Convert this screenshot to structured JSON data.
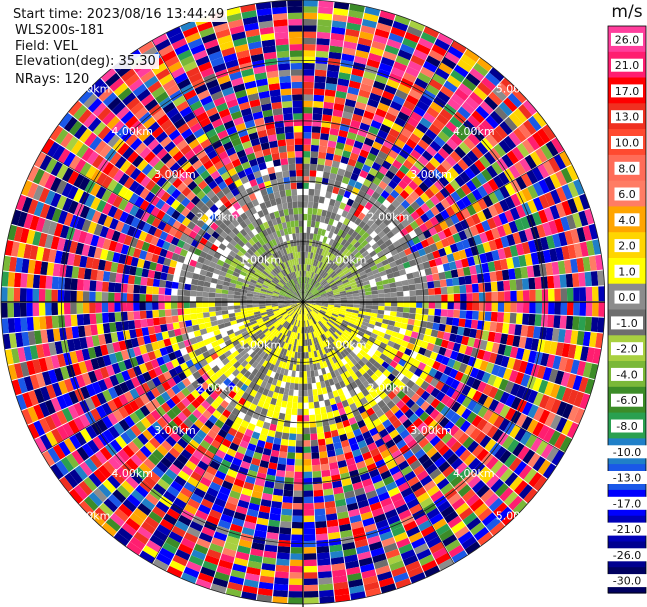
{
  "info": {
    "start_time": "Start time: 2023/08/16 13:44:49",
    "site": "WLS200s-181",
    "field": "Field: VEL",
    "elevation": "Elevation(deg): 35.30",
    "nrays": "NRays: 120"
  },
  "chart_data": {
    "type": "heatmap",
    "projection": "polar-ppi",
    "title": "",
    "nrays": 120,
    "elevation_deg": 35.3,
    "field": "VEL",
    "range_rings_km": [
      1.0,
      2.0,
      3.0,
      4.0,
      5.0
    ],
    "range_labels": [
      "1.00km",
      "2.00km",
      "3.00km",
      "4.00km",
      "5.00km"
    ],
    "colorbar": {
      "unit": "m/s",
      "tick_labels": [
        "26.0",
        "21.0",
        "17.0",
        "13.0",
        "10.0",
        "8.0",
        "6.0",
        "4.0",
        "2.0",
        "1.0",
        "0.0",
        "-1.0",
        "-2.0",
        "-4.0",
        "-6.0",
        "-8.0",
        "-10.0",
        "-13.0",
        "-17.0",
        "-21.0",
        "-26.0",
        "-30.0"
      ],
      "bins": [
        {
          "min": 26,
          "max": 30,
          "color": "#ff3e9c"
        },
        {
          "min": 21,
          "max": 26,
          "color": "#ff1e70"
        },
        {
          "min": 17,
          "max": 21,
          "color": "#ff0000"
        },
        {
          "min": 13,
          "max": 17,
          "color": "#f03020"
        },
        {
          "min": 10,
          "max": 13,
          "color": "#ff4a30"
        },
        {
          "min": 8,
          "max": 10,
          "color": "#ff6c58"
        },
        {
          "min": 6,
          "max": 8,
          "color": "#ff7c64"
        },
        {
          "min": 4,
          "max": 6,
          "color": "#ffa500"
        },
        {
          "min": 2,
          "max": 4,
          "color": "#ffd500"
        },
        {
          "min": 1,
          "max": 2,
          "color": "#ffff00"
        },
        {
          "min": 0,
          "max": 1,
          "color": "#8c8c8c"
        },
        {
          "min": -1,
          "max": 0,
          "color": "#6e6e6e"
        },
        {
          "min": -2,
          "max": -1,
          "color": "#a8d040"
        },
        {
          "min": -4,
          "max": -2,
          "color": "#7ab838"
        },
        {
          "min": -6,
          "max": -4,
          "color": "#3c8c28"
        },
        {
          "min": -8,
          "max": -6,
          "color": "#2aa050"
        },
        {
          "min": -10,
          "max": -8,
          "color": "#2080c8"
        },
        {
          "min": -13,
          "max": -10,
          "color": "#1a58e8"
        },
        {
          "min": -17,
          "max": -13,
          "color": "#0000ff"
        },
        {
          "min": -21,
          "max": -17,
          "color": "#0000b8"
        },
        {
          "min": -26,
          "max": -21,
          "color": "#000090"
        },
        {
          "min": -30,
          "max": -26,
          "color": "#000060"
        }
      ]
    },
    "fields_description": {
      "near_range_km": 1.0,
      "near_range_velocity_ms": "mostly -1.0 to 1.0 with yellow 1.0-2.0 cluster south of center and green -2.0 to -4.0 north",
      "mid_range_km": "1.0-2.5",
      "mid_range_velocity_ms": "mixed gray, yellow and green",
      "far_range_km": "2.5-5.0",
      "far_range_velocity_ms": "noise spanning full colorbar range"
    }
  }
}
